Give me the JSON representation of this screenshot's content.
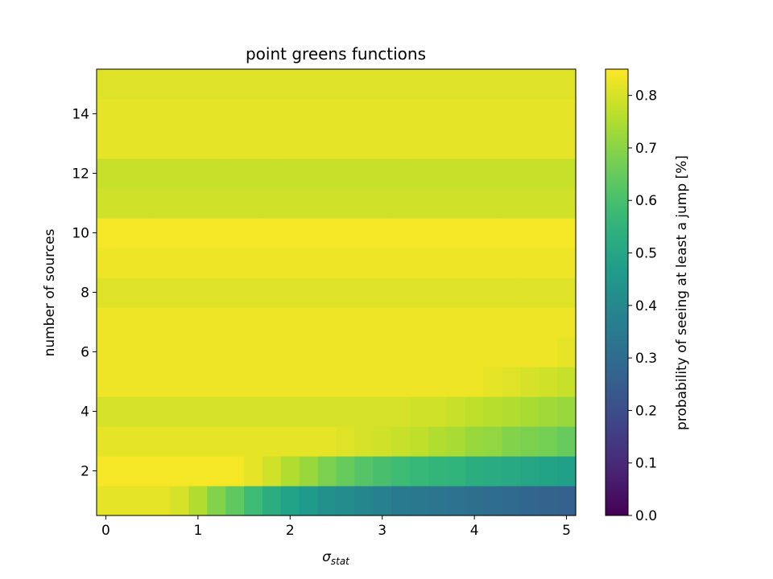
{
  "chart_data": {
    "type": "heatmap",
    "title": "point greens functions",
    "xlabel_base": "σ",
    "xlabel_sub": "stat",
    "ylabel": "number of sources",
    "colorbar_label": "probability of seeing at least a jump [%]",
    "colormap": "viridis",
    "color_range": [
      0.0,
      0.85
    ],
    "x_range": [
      -0.1,
      5.1
    ],
    "y_range": [
      0.5,
      15.5
    ],
    "x_ticks": [
      0,
      1,
      2,
      3,
      4,
      5
    ],
    "y_ticks": [
      2,
      4,
      6,
      8,
      10,
      12,
      14
    ],
    "colorbar_ticks": [
      0.0,
      0.1,
      0.2,
      0.3,
      0.4,
      0.5,
      0.6,
      0.7,
      0.8
    ],
    "x": [
      0.0,
      0.2,
      0.4,
      0.6,
      0.8,
      1.0,
      1.2,
      1.4,
      1.6,
      1.8,
      2.0,
      2.2,
      2.4,
      2.6,
      2.8,
      3.0,
      3.2,
      3.4,
      3.6,
      3.8,
      4.0,
      4.2,
      4.4,
      4.6,
      4.8,
      5.0
    ],
    "y": [
      1,
      2,
      3,
      4,
      5,
      6,
      7,
      8,
      9,
      10,
      11,
      12,
      13,
      14,
      15
    ],
    "z": [
      [
        0.82,
        0.82,
        0.82,
        0.82,
        0.8,
        0.75,
        0.69,
        0.64,
        0.58,
        0.53,
        0.49,
        0.46,
        0.43,
        0.41,
        0.39,
        0.37,
        0.35,
        0.34,
        0.33,
        0.32,
        0.31,
        0.3,
        0.29,
        0.28,
        0.27,
        0.26
      ],
      [
        0.84,
        0.84,
        0.84,
        0.84,
        0.84,
        0.84,
        0.84,
        0.84,
        0.82,
        0.79,
        0.75,
        0.72,
        0.68,
        0.65,
        0.62,
        0.6,
        0.58,
        0.57,
        0.56,
        0.55,
        0.53,
        0.52,
        0.51,
        0.5,
        0.49,
        0.48
      ],
      [
        0.82,
        0.82,
        0.82,
        0.82,
        0.82,
        0.82,
        0.82,
        0.82,
        0.82,
        0.82,
        0.82,
        0.82,
        0.82,
        0.81,
        0.8,
        0.79,
        0.78,
        0.77,
        0.75,
        0.74,
        0.72,
        0.71,
        0.69,
        0.68,
        0.67,
        0.65
      ],
      [
        0.8,
        0.8,
        0.8,
        0.8,
        0.8,
        0.8,
        0.8,
        0.8,
        0.8,
        0.8,
        0.8,
        0.8,
        0.8,
        0.8,
        0.8,
        0.8,
        0.8,
        0.79,
        0.79,
        0.78,
        0.77,
        0.76,
        0.75,
        0.74,
        0.73,
        0.72
      ],
      [
        0.83,
        0.83,
        0.83,
        0.83,
        0.83,
        0.83,
        0.83,
        0.83,
        0.83,
        0.83,
        0.83,
        0.83,
        0.83,
        0.83,
        0.83,
        0.83,
        0.83,
        0.83,
        0.83,
        0.83,
        0.83,
        0.82,
        0.81,
        0.8,
        0.79,
        0.78
      ],
      [
        0.83,
        0.83,
        0.83,
        0.83,
        0.83,
        0.83,
        0.83,
        0.83,
        0.83,
        0.83,
        0.83,
        0.83,
        0.83,
        0.83,
        0.83,
        0.83,
        0.83,
        0.83,
        0.83,
        0.83,
        0.83,
        0.83,
        0.83,
        0.83,
        0.83,
        0.82
      ],
      [
        0.83,
        0.83,
        0.83,
        0.83,
        0.83,
        0.83,
        0.83,
        0.83,
        0.83,
        0.83,
        0.83,
        0.83,
        0.83,
        0.83,
        0.83,
        0.83,
        0.83,
        0.83,
        0.83,
        0.83,
        0.83,
        0.83,
        0.83,
        0.83,
        0.83,
        0.83
      ],
      [
        0.81,
        0.81,
        0.81,
        0.81,
        0.81,
        0.81,
        0.81,
        0.81,
        0.81,
        0.81,
        0.81,
        0.81,
        0.81,
        0.81,
        0.81,
        0.81,
        0.81,
        0.81,
        0.81,
        0.81,
        0.81,
        0.81,
        0.81,
        0.81,
        0.81,
        0.81
      ],
      [
        0.83,
        0.83,
        0.83,
        0.83,
        0.83,
        0.83,
        0.83,
        0.83,
        0.83,
        0.83,
        0.83,
        0.83,
        0.83,
        0.83,
        0.83,
        0.83,
        0.83,
        0.83,
        0.83,
        0.83,
        0.83,
        0.83,
        0.83,
        0.83,
        0.83,
        0.83
      ],
      [
        0.84,
        0.84,
        0.84,
        0.84,
        0.84,
        0.84,
        0.84,
        0.84,
        0.84,
        0.84,
        0.84,
        0.84,
        0.84,
        0.84,
        0.84,
        0.84,
        0.84,
        0.84,
        0.84,
        0.84,
        0.84,
        0.84,
        0.84,
        0.84,
        0.84,
        0.84
      ],
      [
        0.79,
        0.79,
        0.79,
        0.79,
        0.79,
        0.79,
        0.79,
        0.79,
        0.79,
        0.79,
        0.79,
        0.79,
        0.79,
        0.79,
        0.79,
        0.79,
        0.79,
        0.79,
        0.79,
        0.79,
        0.79,
        0.79,
        0.79,
        0.79,
        0.79,
        0.79
      ],
      [
        0.78,
        0.78,
        0.78,
        0.78,
        0.78,
        0.78,
        0.78,
        0.78,
        0.78,
        0.78,
        0.78,
        0.78,
        0.78,
        0.78,
        0.78,
        0.78,
        0.78,
        0.78,
        0.78,
        0.78,
        0.78,
        0.78,
        0.78,
        0.78,
        0.78,
        0.78
      ],
      [
        0.82,
        0.82,
        0.82,
        0.82,
        0.82,
        0.82,
        0.82,
        0.82,
        0.82,
        0.82,
        0.82,
        0.82,
        0.82,
        0.82,
        0.82,
        0.82,
        0.82,
        0.82,
        0.82,
        0.82,
        0.82,
        0.82,
        0.82,
        0.82,
        0.82,
        0.82
      ],
      [
        0.82,
        0.82,
        0.82,
        0.82,
        0.82,
        0.82,
        0.82,
        0.82,
        0.82,
        0.82,
        0.82,
        0.82,
        0.82,
        0.82,
        0.82,
        0.82,
        0.82,
        0.82,
        0.82,
        0.82,
        0.82,
        0.82,
        0.82,
        0.82,
        0.82,
        0.82
      ],
      [
        0.81,
        0.81,
        0.81,
        0.81,
        0.81,
        0.81,
        0.81,
        0.81,
        0.81,
        0.81,
        0.81,
        0.81,
        0.81,
        0.81,
        0.81,
        0.81,
        0.81,
        0.81,
        0.81,
        0.81,
        0.81,
        0.81,
        0.81,
        0.81,
        0.81,
        0.81
      ]
    ]
  }
}
